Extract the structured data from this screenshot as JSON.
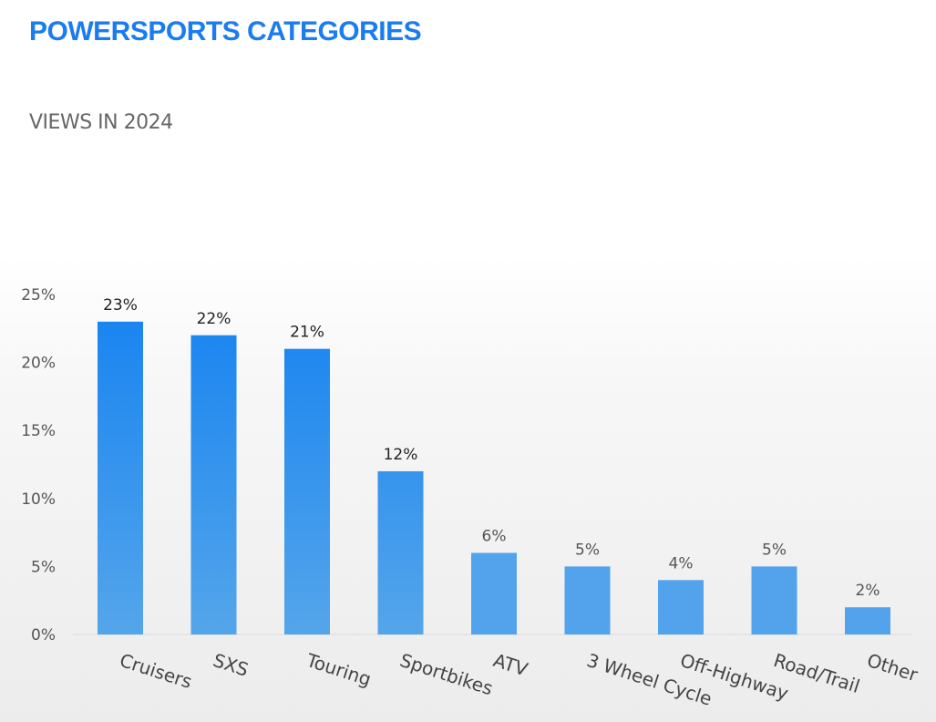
{
  "header": {
    "title": "POWERSPORTS CATEGORIES",
    "subtitle": "VIEWS IN 2024"
  },
  "colors": {
    "title": "#1b7cf0",
    "bar_top": "#1a85f0",
    "bar_bottom": "#55a5ea",
    "bar_light": "#52a3ec",
    "label_dark": "#222222",
    "label_light": "#555555"
  },
  "chart_data": {
    "type": "bar",
    "title": "VIEWS IN 2024",
    "xlabel": "",
    "ylabel": "",
    "categories": [
      "Cruisers",
      "SXS",
      "Touring",
      "Sportbikes",
      "ATV",
      "3 Wheel Cycle",
      "Off-Highway",
      "Road/Trail",
      "Other"
    ],
    "values": [
      23,
      22,
      21,
      12,
      6,
      5,
      4,
      5,
      2
    ],
    "data_labels": [
      "23%",
      "22%",
      "21%",
      "12%",
      "6%",
      "5%",
      "4%",
      "5%",
      "2%"
    ],
    "ylim": [
      0,
      25
    ],
    "yticks": [
      0,
      5,
      10,
      15,
      20,
      25
    ],
    "ytick_labels": [
      "0%",
      "5%",
      "10%",
      "15%",
      "20%",
      "25%"
    ],
    "grid": false,
    "legend": "none"
  }
}
